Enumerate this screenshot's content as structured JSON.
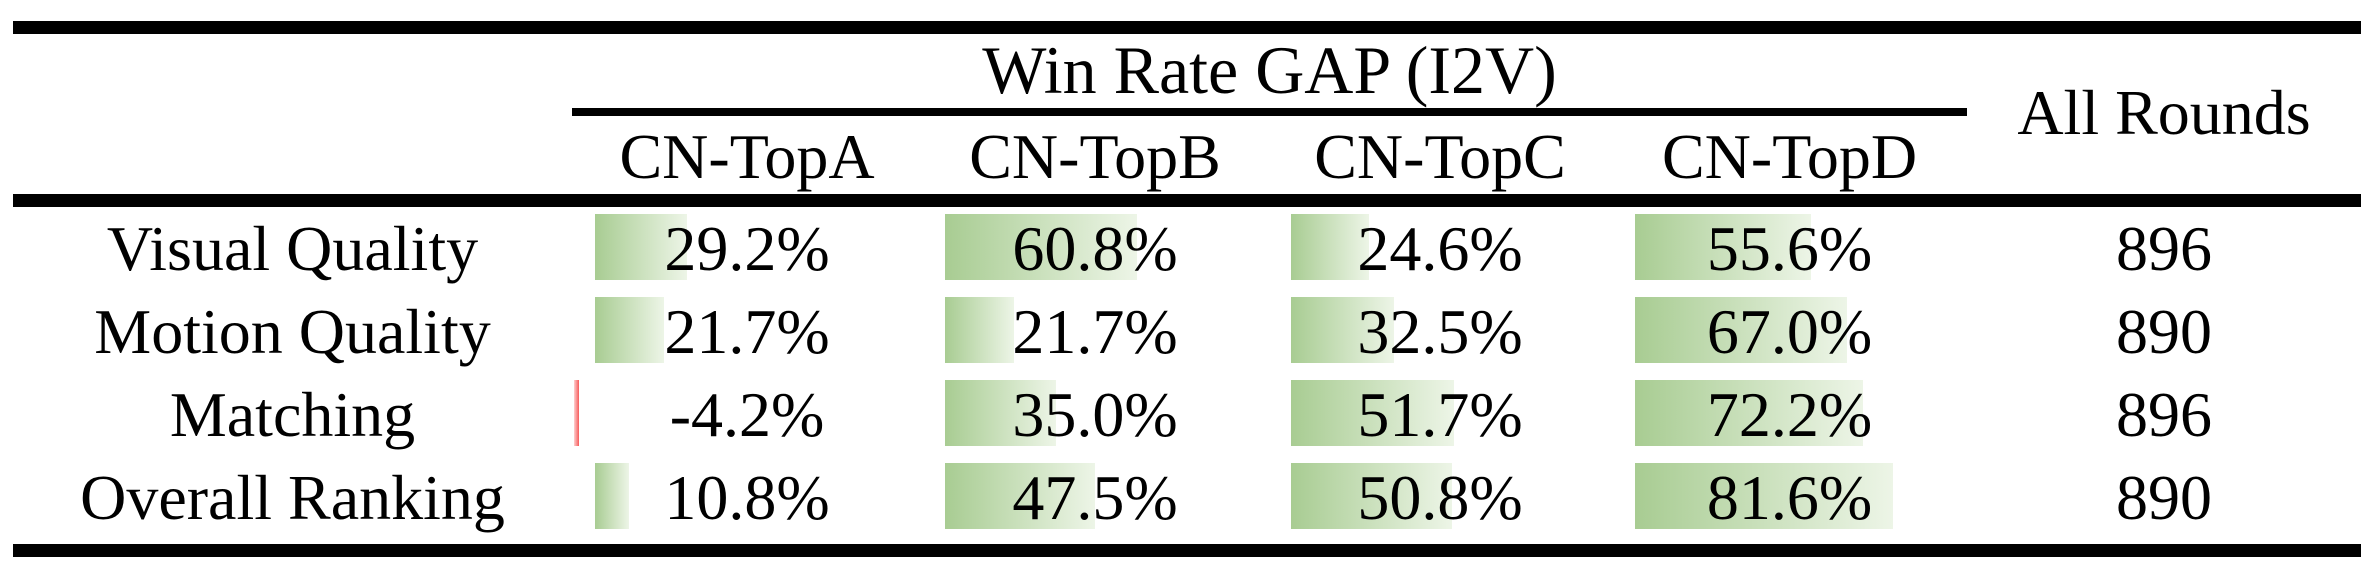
{
  "table": {
    "group_header": "Win Rate GAP (I2V)",
    "all_rounds_header": "All Rounds",
    "columns": [
      "CN-TopA",
      "CN-TopB",
      "CN-TopC",
      "CN-TopD"
    ],
    "rows": [
      {
        "label": "Visual Quality",
        "values": [
          29.2,
          60.8,
          24.6,
          55.6
        ],
        "display": [
          "29.2%",
          "60.8%",
          "24.6%",
          "55.6%"
        ],
        "all_rounds": "896"
      },
      {
        "label": "Motion Quality",
        "values": [
          21.7,
          21.7,
          32.5,
          67.0
        ],
        "display": [
          "21.7%",
          "21.7%",
          "32.5%",
          "67.0%"
        ],
        "all_rounds": "890"
      },
      {
        "label": "Matching",
        "values": [
          -4.2,
          35.0,
          51.7,
          72.2
        ],
        "display": [
          "-4.2%",
          "35.0%",
          "51.7%",
          "72.2%"
        ],
        "all_rounds": "896"
      },
      {
        "label": "Overall Ranking",
        "values": [
          10.8,
          47.5,
          50.8,
          81.6
        ],
        "display": [
          "10.8%",
          "47.5%",
          "50.8%",
          "81.6%"
        ],
        "all_rounds": "890"
      }
    ],
    "colors": {
      "background": "#ffffff",
      "text": "#000000",
      "rule": "#000000",
      "bar_positive_start": "#a8cc92",
      "bar_positive_end": "#edf5e7",
      "bar_negative_start": "#ffcfcf",
      "bar_negative_end": "#f65b5b"
    }
  },
  "chart_data": {
    "type": "table",
    "title": "Win Rate GAP (I2V)",
    "columns": [
      "CN-TopA",
      "CN-TopB",
      "CN-TopC",
      "CN-TopD",
      "All Rounds"
    ],
    "row_header": [
      "Visual Quality",
      "Motion Quality",
      "Matching",
      "Overall Ranking"
    ],
    "cells": [
      [
        "29.2%",
        "60.8%",
        "24.6%",
        "55.6%",
        "896"
      ],
      [
        "21.7%",
        "21.7%",
        "32.5%",
        "67.0%",
        "890"
      ],
      [
        "-4.2%",
        "35.0%",
        "51.7%",
        "72.2%",
        "896"
      ],
      [
        "10.8%",
        "47.5%",
        "50.8%",
        "81.6%",
        "890"
      ]
    ],
    "bar_values_percent": [
      [
        29.2,
        60.8,
        24.6,
        55.6
      ],
      [
        21.7,
        21.7,
        32.5,
        67.0
      ],
      [
        -4.2,
        35.0,
        51.7,
        72.2
      ],
      [
        10.8,
        47.5,
        50.8,
        81.6
      ]
    ],
    "notes": "In-cell green gradient data bars scaled to percent value; negative value drawn as thin red bar"
  }
}
